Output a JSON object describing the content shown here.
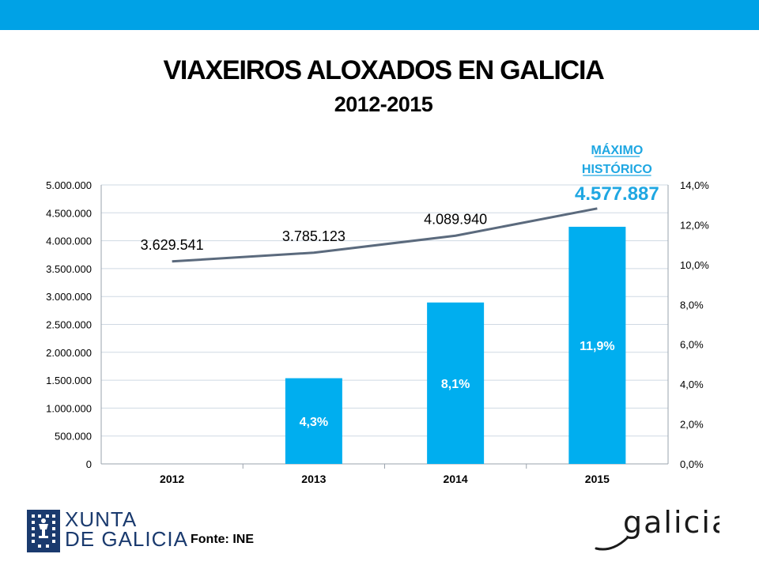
{
  "colors": {
    "banner": "#00a2e6",
    "bar": "#00aeef",
    "line": "#5b6a7d",
    "highlight": "#1fa7e2",
    "logo": "#1a3a6e"
  },
  "footer": {
    "source": "Fonte: INE",
    "logo_left_lines": [
      "XUNTA",
      "DE GALICIA"
    ],
    "logo_left_icon": "galicia-coat-of-arms-icon",
    "logo_right_text": "galicia"
  },
  "chart_data": {
    "type": "bar",
    "title": "VIAXEIROS ALOXADOS EN GALICIA",
    "subtitle": "2012-2015",
    "categories": [
      "2012",
      "2013",
      "2014",
      "2015"
    ],
    "grid": true,
    "y_left": {
      "ticks": [
        "0",
        "500.000",
        "1.000.000",
        "1.500.000",
        "2.000.000",
        "2.500.000",
        "3.000.000",
        "3.500.000",
        "4.000.000",
        "4.500.000",
        "5.000.000"
      ],
      "lim": [
        0,
        5000000
      ]
    },
    "y_right": {
      "ticks": [
        "0,0%",
        "2,0%",
        "4,0%",
        "6,0%",
        "8,0%",
        "10,0%",
        "12,0%",
        "14,0%"
      ],
      "lim": [
        0,
        14
      ]
    },
    "series": [
      {
        "type": "bar",
        "axis": "right",
        "values": [
          0,
          4.3,
          8.1,
          11.9
        ],
        "labels": [
          "",
          "4,3%",
          "8,1%",
          "11,9%"
        ]
      },
      {
        "type": "line",
        "axis": "left",
        "values": [
          3629541,
          3785123,
          4089940,
          4577887
        ],
        "labels": [
          "3.629.541",
          "3.785.123",
          "4.089.940",
          "4.577.887"
        ]
      }
    ],
    "annotation": {
      "text_lines": [
        "MÁXIMO",
        "HISTÓRICO"
      ],
      "category": "2015"
    }
  }
}
